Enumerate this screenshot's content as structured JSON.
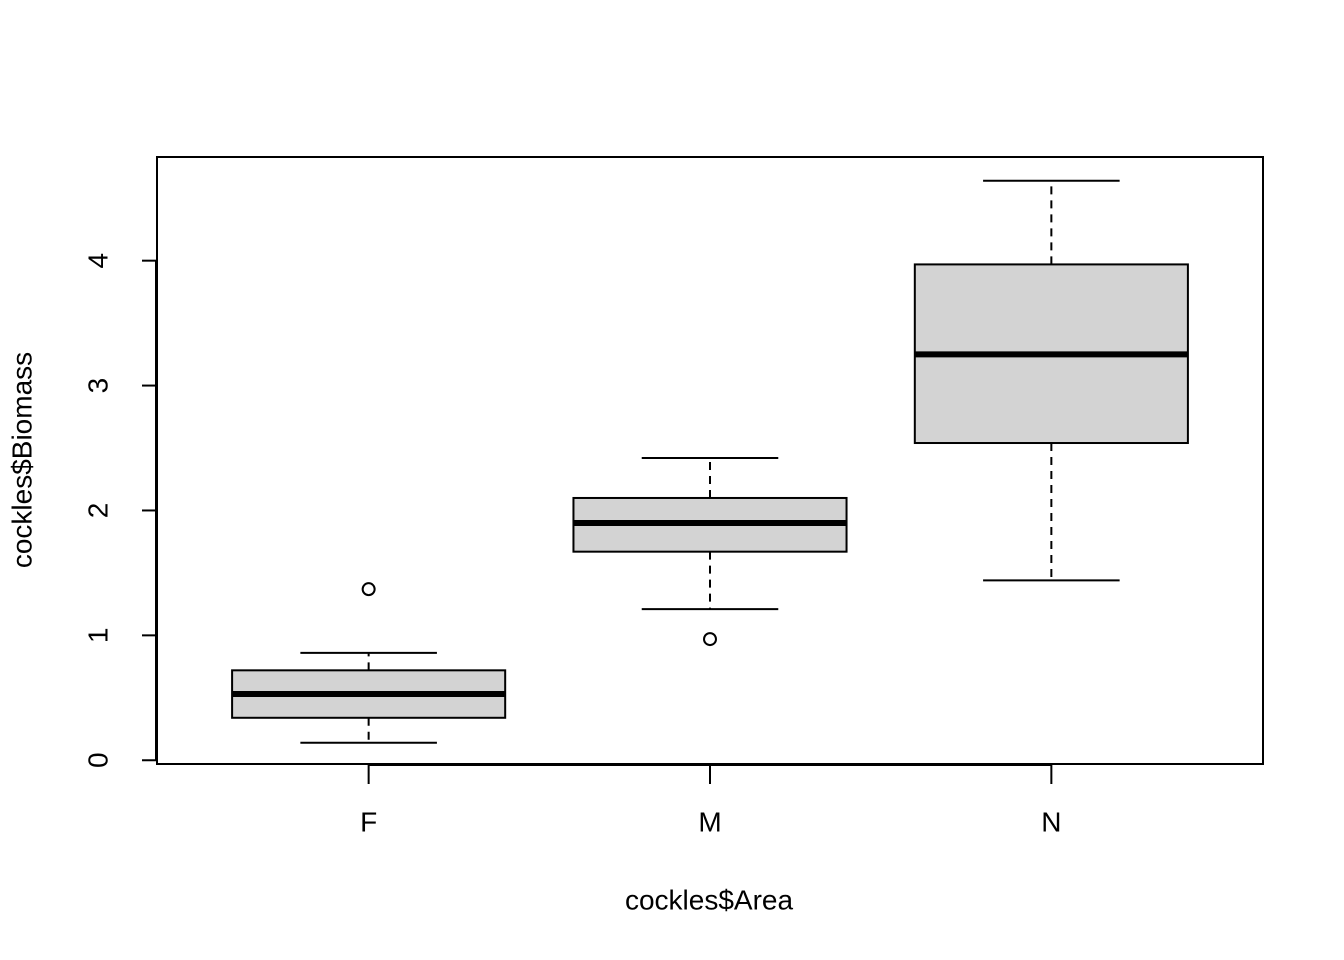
{
  "chart_data": {
    "type": "boxplot",
    "xlabel": "cockles$Area",
    "ylabel": "cockles$Biomass",
    "categories": [
      "F",
      "M",
      "N"
    ],
    "color": "#d3d3d3",
    "boxes": [
      {
        "low": 0.14,
        "q1": 0.34,
        "median": 0.53,
        "q3": 0.72,
        "high": 0.86,
        "outliers": [
          1.37
        ]
      },
      {
        "low": 1.21,
        "q1": 1.67,
        "median": 1.9,
        "q3": 2.1,
        "high": 2.42,
        "outliers": [
          0.97
        ]
      },
      {
        "low": 1.44,
        "q1": 2.54,
        "median": 3.25,
        "q3": 3.97,
        "high": 4.64,
        "outliers": []
      }
    ],
    "ylim": [
      -0.03,
      4.83
    ],
    "yticks": [
      0,
      1,
      2,
      3,
      4
    ]
  }
}
